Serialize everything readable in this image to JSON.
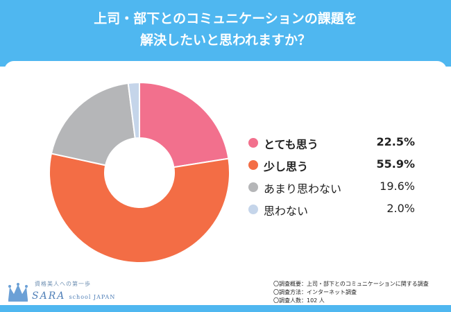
{
  "title": {
    "line1": "上司・部下とのコミュニケーションの課題を",
    "line2": "解決したいと思われますか？"
  },
  "chart_data": {
    "type": "pie",
    "style": "donut",
    "slices": [
      {
        "label": "とても思う",
        "value": 22.5,
        "display": "22.5%",
        "color": "#f2708d",
        "bold": true
      },
      {
        "label": "少し思う",
        "value": 55.9,
        "display": "55.9%",
        "color": "#f36d45",
        "bold": true
      },
      {
        "label": "あまり思わない",
        "value": 19.6,
        "display": "19.6%",
        "color": "#b5b6b8",
        "bold": false
      },
      {
        "label": "思わない",
        "value": 2.0,
        "display": "2.0%",
        "color": "#c5d5ea",
        "bold": false
      }
    ],
    "legend_position": "right"
  },
  "logo": {
    "tagline": "資格美人への第一歩",
    "brand": "SARA",
    "brand_sub": "school JAPAN"
  },
  "notes": {
    "line1": "〇調査概要：上司・部下とのコミュニケーションに関する調査",
    "line2": "〇調査方法：インターネット調査",
    "line3": "〇調査人数：102 人"
  },
  "colors": {
    "header": "#4fb7f0",
    "logo": "#4f7fb7"
  }
}
